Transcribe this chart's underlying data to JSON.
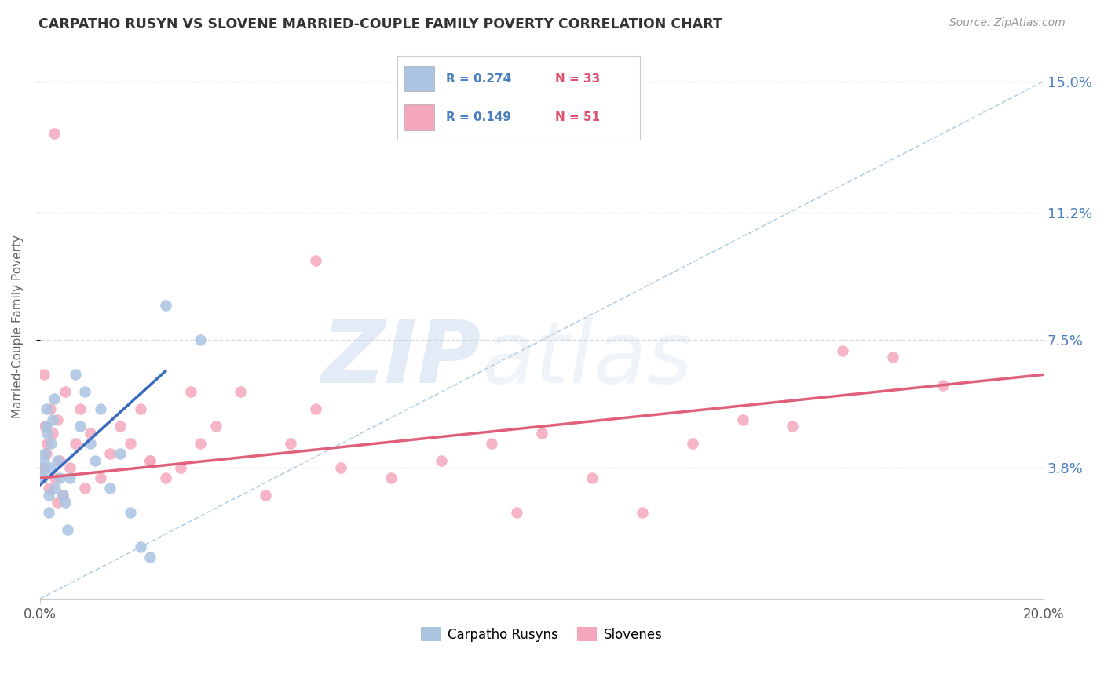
{
  "title": "CARPATHO RUSYN VS SLOVENE MARRIED-COUPLE FAMILY POVERTY CORRELATION CHART",
  "source": "Source: ZipAtlas.com",
  "ylabel": "Married-Couple Family Poverty",
  "legend_label1": "Carpatho Rusyns",
  "legend_label2": "Slovenes",
  "R1": 0.274,
  "N1": 33,
  "R2": 0.149,
  "N2": 51,
  "color1": "#aac4e2",
  "color2": "#f5a8bc",
  "line_color1": "#3a6bbf",
  "line_color2": "#e0607a",
  "xmin": 0.0,
  "xmax": 20.0,
  "ymin": 0.0,
  "ymax": 15.8,
  "ytick_vals": [
    3.8,
    7.5,
    11.2,
    15.0
  ],
  "watermark_zip": "ZIP",
  "watermark_atlas": "atlas",
  "background_color": "#ffffff",
  "blue_line_x0": 0.0,
  "blue_line_y0": 3.3,
  "blue_line_x1": 2.5,
  "blue_line_y1": 6.6,
  "pink_line_x0": 0.0,
  "pink_line_y0": 3.5,
  "pink_line_x1": 20.0,
  "pink_line_y1": 6.5,
  "ref_line_x0": 0.0,
  "ref_line_y0": 0.0,
  "ref_line_x1": 20.0,
  "ref_line_y1": 15.0,
  "carpatho_x": [
    0.05,
    0.07,
    0.08,
    0.1,
    0.12,
    0.13,
    0.15,
    0.17,
    0.18,
    0.2,
    0.22,
    0.25,
    0.28,
    0.3,
    0.35,
    0.4,
    0.45,
    0.5,
    0.55,
    0.6,
    0.7,
    0.8,
    0.9,
    1.0,
    1.1,
    1.2,
    1.4,
    1.6,
    1.8,
    2.0,
    2.2,
    2.5,
    3.2
  ],
  "carpatho_y": [
    3.5,
    3.7,
    4.0,
    4.2,
    5.0,
    5.5,
    4.8,
    3.0,
    2.5,
    3.8,
    4.5,
    5.2,
    5.8,
    3.2,
    4.0,
    3.5,
    3.0,
    2.8,
    2.0,
    3.5,
    6.5,
    5.0,
    6.0,
    4.5,
    4.0,
    5.5,
    3.2,
    4.2,
    2.5,
    1.5,
    1.2,
    8.5,
    7.5
  ],
  "slovene_x": [
    0.05,
    0.08,
    0.1,
    0.12,
    0.15,
    0.18,
    0.2,
    0.25,
    0.3,
    0.35,
    0.4,
    0.45,
    0.5,
    0.6,
    0.7,
    0.8,
    0.9,
    1.0,
    1.2,
    1.4,
    1.6,
    1.8,
    2.0,
    2.2,
    2.5,
    2.8,
    3.0,
    3.2,
    3.5,
    4.0,
    4.5,
    5.0,
    5.5,
    6.0,
    7.0,
    8.0,
    9.0,
    10.0,
    11.0,
    12.0,
    13.0,
    14.0,
    15.0,
    16.0,
    17.0,
    18.0,
    0.28,
    0.35,
    2.2,
    5.5,
    9.5
  ],
  "slovene_y": [
    3.8,
    6.5,
    5.0,
    4.2,
    4.5,
    3.2,
    5.5,
    4.8,
    3.5,
    5.2,
    4.0,
    3.0,
    6.0,
    3.8,
    4.5,
    5.5,
    3.2,
    4.8,
    3.5,
    4.2,
    5.0,
    4.5,
    5.5,
    4.0,
    3.5,
    3.8,
    6.0,
    4.5,
    5.0,
    6.0,
    3.0,
    4.5,
    5.5,
    3.8,
    3.5,
    4.0,
    4.5,
    4.8,
    3.5,
    2.5,
    4.5,
    5.2,
    5.0,
    7.2,
    7.0,
    6.2,
    13.5,
    2.8,
    4.0,
    9.8,
    2.5
  ]
}
